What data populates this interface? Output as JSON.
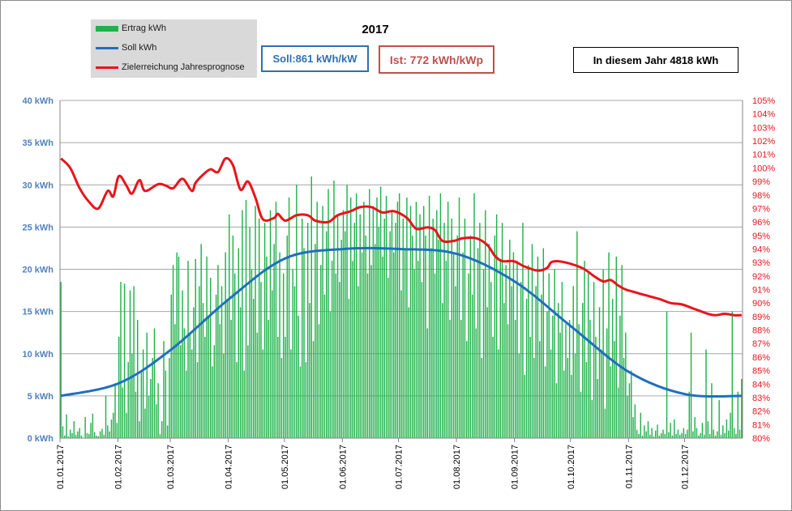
{
  "chart_data": {
    "type": "bar",
    "title": "2017",
    "legend": {
      "placement": "top-left",
      "entries": [
        {
          "label": "Ertrag kWh",
          "color": "#1fb24a",
          "kind": "bar"
        },
        {
          "label": "Soll kWh",
          "color": "#1e6fbf",
          "kind": "line"
        },
        {
          "label": "Zielerreichung Jahresprognose",
          "color": "#e8141c",
          "kind": "line"
        }
      ]
    },
    "annotations": {
      "soll": "Soll:861 kWh/kW",
      "ist": "Ist: 772 kWh/kWp",
      "year_total": "In diesem Jahr 4818 kWh"
    },
    "y_axis": {
      "ylim": [
        0,
        40
      ],
      "ticks": [
        "0 kWh",
        "5 kWh",
        "10 kWh",
        "15 kWh",
        "20 kWh",
        "25 kWh",
        "30 kWh",
        "35 kWh",
        "40 kWh"
      ]
    },
    "y2_axis": {
      "ylim": [
        80,
        105
      ],
      "ticks": [
        "80%",
        "81%",
        "82%",
        "83%",
        "84%",
        "85%",
        "86%",
        "87%",
        "88%",
        "89%",
        "90%",
        "91%",
        "92%",
        "93%",
        "94%",
        "95%",
        "96%",
        "97%",
        "98%",
        "99%",
        "100%",
        "101%",
        "102%",
        "103%",
        "104%",
        "105%"
      ]
    },
    "x_axis": {
      "xlim": [
        "01.01.2017",
        "31.12.2017"
      ],
      "ticks": [
        "01.01.2017",
        "01.02.2017",
        "01.03.2017",
        "01.04.2017",
        "01.05.2017",
        "01.06.2017",
        "01.07.2017",
        "01.08.2017",
        "01.09.2017",
        "01.10.2017",
        "01.11.2017",
        "01.12.2017"
      ]
    },
    "grid": "horizontal",
    "series": [
      {
        "name": "Ertrag kWh",
        "type": "bar",
        "values_by_month": [
          [
            18.5,
            1.4,
            0.3,
            2.8,
            0.2,
            1.0,
            0.6,
            2.0,
            0.4,
            0.8,
            1.2,
            0.3,
            0.0,
            2.5,
            0.6,
            0.5,
            1.8,
            2.9,
            0.7,
            0.3,
            0.2,
            0.8,
            1.1,
            0.4,
            5.0,
            1.5,
            0.8,
            2.2,
            3.0,
            6.5,
            1.8
          ],
          [
            12.0,
            18.5,
            6.0,
            18.3,
            3.0,
            9.0,
            17.5,
            10.0,
            18.0,
            5.5,
            14.0,
            2.0,
            8.0,
            10.5,
            3.5,
            12.5,
            5.0,
            7.0,
            9.5,
            13.0,
            4.0,
            6.5,
            0.5,
            2.0,
            11.5,
            8.0,
            1.5,
            9.5
          ],
          [
            17.0,
            20.5,
            13.5,
            22.0,
            21.5,
            11.0,
            17.5,
            13.0,
            8.0,
            21.0,
            12.5,
            10.5,
            15.5,
            21.2,
            9.0,
            18.0,
            23.0,
            16.0,
            12.0,
            21.5,
            14.5,
            19.0,
            8.5,
            11.0,
            17.0,
            20.5,
            13.5,
            18.0,
            10.0,
            22.0,
            16.5
          ],
          [
            26.5,
            14.0,
            24.0,
            19.5,
            9.0,
            22.5,
            15.5,
            27.0,
            8.0,
            28.2,
            11.0,
            25.0,
            20.0,
            16.5,
            27.5,
            12.5,
            26.0,
            18.5,
            10.5,
            25.5,
            21.5,
            14.0,
            27.0,
            17.5,
            23.0,
            28.0,
            12.0,
            22.0,
            9.5,
            19.5
          ],
          [
            12.0,
            24.0,
            28.5,
            10.5,
            20.0,
            18.0,
            30.0,
            14.5,
            8.5,
            26.0,
            22.5,
            9.0,
            25.5,
            16.0,
            31.0,
            11.5,
            23.0,
            28.0,
            13.5,
            20.5,
            27.5,
            17.0,
            24.5,
            29.5,
            15.0,
            21.0,
            30.5,
            19.5,
            26.5,
            18.5,
            23.5
          ],
          [
            27.0,
            24.5,
            30.0,
            16.5,
            28.5,
            21.0,
            25.5,
            29.0,
            18.0,
            26.5,
            22.0,
            28.0,
            24.0,
            19.5,
            29.5,
            20.5,
            27.5,
            23.0,
            28.5,
            25.0,
            29.8,
            21.5,
            26.0,
            28.7,
            19.0,
            24.5,
            27.0,
            22.0,
            25.5,
            28.0
          ],
          [
            29.0,
            17.5,
            26.0,
            22.5,
            28.5,
            15.5,
            27.5,
            24.0,
            20.0,
            28.0,
            21.0,
            26.5,
            18.5,
            27.5,
            24.0,
            13.0,
            28.7,
            22.5,
            26.0,
            19.5,
            27.0,
            23.5,
            29.0,
            16.0,
            25.5,
            21.0,
            28.0,
            14.0,
            26.0,
            22.0,
            18.0
          ],
          [
            24.0,
            28.5,
            14.0,
            22.0,
            26.0,
            11.5,
            19.5,
            24.0,
            17.0,
            29.0,
            13.0,
            22.5,
            25.5,
            9.5,
            20.0,
            27.0,
            15.5,
            23.0,
            18.5,
            12.0,
            24.0,
            26.5,
            10.5,
            21.0,
            25.5,
            16.0,
            20.5,
            13.5,
            23.5,
            18.0,
            22.0
          ],
          [
            14.0,
            21.0,
            10.0,
            18.5,
            25.5,
            7.5,
            16.5,
            20.5,
            12.0,
            23.0,
            9.5,
            18.0,
            21.5,
            11.5,
            17.0,
            22.5,
            8.5,
            15.0,
            19.5,
            10.5,
            14.5,
            20.0,
            6.5,
            16.0,
            12.5,
            18.5,
            8.0,
            13.5,
            9.5,
            14.0
          ],
          [
            7.5,
            18.0,
            10.0,
            24.5,
            13.5,
            5.5,
            16.0,
            21.0,
            9.0,
            19.5,
            14.0,
            4.5,
            18.5,
            12.0,
            7.0,
            15.5,
            10.5,
            20.0,
            3.5,
            13.0,
            22.0,
            8.5,
            16.5,
            11.5,
            21.5,
            6.0,
            14.5,
            20.5,
            9.5,
            12.5,
            5.0
          ],
          [
            6.5,
            8.0,
            2.5,
            4.0,
            1.0,
            0.5,
            3.0,
            0.3,
            1.5,
            0.8,
            2.0,
            0.4,
            1.2,
            0.2,
            0.9,
            1.6,
            0.3,
            0.6,
            1.0,
            0.5,
            15.0,
            0.7,
            1.8,
            0.3,
            2.2,
            0.5,
            1.0,
            0.4,
            0.6,
            1.2
          ],
          [
            0.5,
            1.0,
            5.5,
            12.5,
            0.8,
            2.5,
            1.2,
            0.3,
            0.6,
            1.8,
            0.4,
            10.5,
            2.0,
            0.5,
            6.5,
            1.0,
            0.3,
            0.8,
            4.5,
            0.4,
            1.5,
            0.6,
            2.2,
            0.9,
            3.0,
            15.0,
            1.2,
            0.5,
            5.5,
            1.0,
            7.0
          ]
        ]
      },
      {
        "name": "Soll kWh",
        "type": "line",
        "color": "#1e6fbf",
        "x": [
          0,
          31,
          59,
          90,
          120,
          151,
          181,
          212,
          243,
          273,
          304,
          334,
          364
        ],
        "values": [
          5.0,
          6.5,
          10.5,
          16.5,
          21.3,
          22.4,
          22.4,
          21.8,
          18.5,
          13.2,
          7.8,
          5.2,
          5.0
        ]
      },
      {
        "name": "Zielerreichung Jahresprognose",
        "type": "line",
        "axis": "y2",
        "color": "#e8141c",
        "x": [
          0,
          5,
          10,
          15,
          20,
          25,
          28,
          31,
          35,
          38,
          42,
          45,
          52,
          56,
          60,
          65,
          70,
          72,
          76,
          80,
          84,
          88,
          92,
          96,
          100,
          104,
          108,
          114,
          116,
          120,
          126,
          132,
          136,
          143,
          148,
          155,
          160,
          166,
          172,
          178,
          185,
          190,
          196,
          200,
          204,
          210,
          215,
          222,
          228,
          232,
          236,
          242,
          248,
          255,
          260,
          262,
          265,
          270,
          275,
          280,
          285,
          290,
          294,
          298,
          302,
          307,
          312,
          320,
          326,
          332,
          338,
          342,
          346,
          350,
          355,
          360,
          364
        ],
        "values": [
          100.7,
          100.0,
          98.5,
          97.5,
          97.0,
          98.3,
          97.9,
          99.4,
          98.7,
          98.1,
          99.1,
          98.3,
          98.8,
          98.7,
          98.5,
          99.2,
          98.3,
          98.9,
          99.5,
          99.9,
          99.7,
          100.7,
          100.2,
          98.4,
          99.0,
          97.8,
          96.2,
          96.3,
          96.6,
          96.1,
          96.5,
          96.5,
          96.1,
          96.0,
          96.5,
          96.8,
          97.1,
          97.1,
          96.7,
          96.8,
          96.3,
          95.5,
          95.6,
          95.4,
          94.6,
          94.6,
          94.8,
          94.8,
          94.3,
          93.5,
          93.1,
          93.1,
          92.7,
          92.4,
          92.6,
          93.0,
          93.1,
          93.0,
          92.8,
          92.5,
          92.0,
          91.6,
          91.7,
          91.3,
          91.0,
          90.8,
          90.6,
          90.3,
          90.0,
          89.9,
          89.6,
          89.4,
          89.2,
          89.1,
          89.2,
          89.1,
          89.1
        ]
      }
    ]
  }
}
